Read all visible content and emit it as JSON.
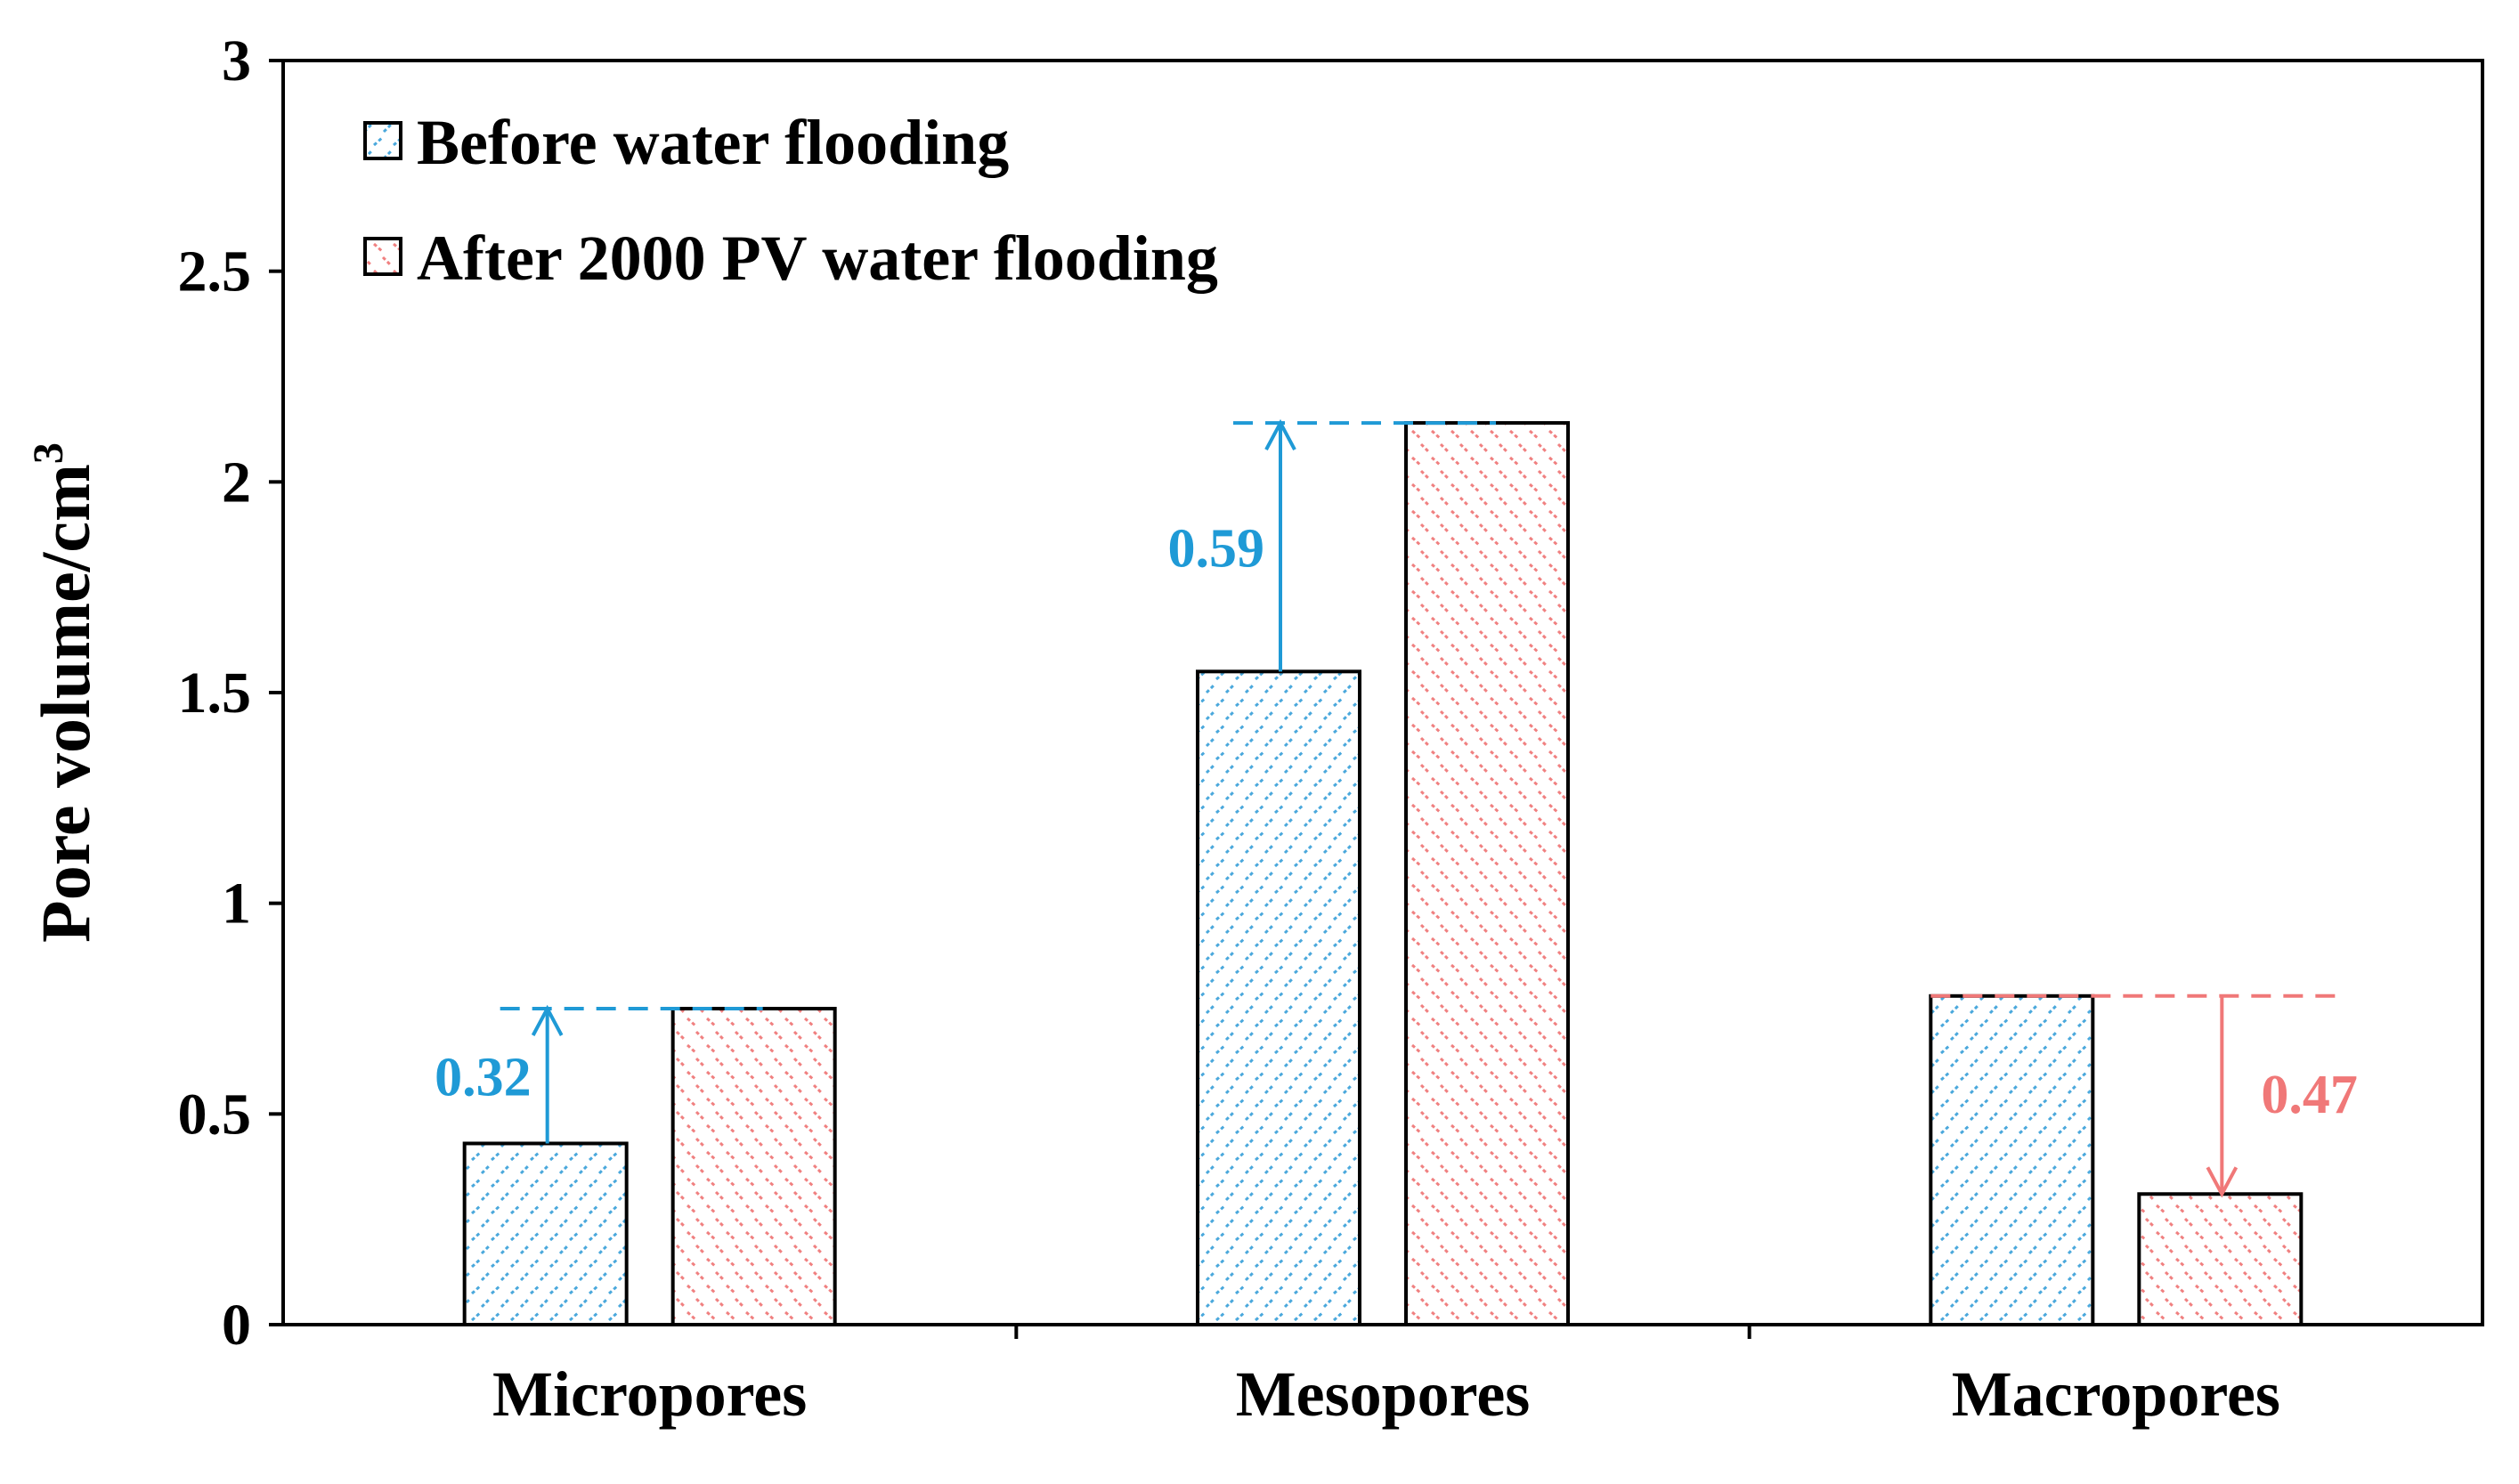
{
  "chart_data": {
    "type": "bar",
    "title": "",
    "xlabel": "",
    "ylabel": "Pore volume/cm",
    "ylabel_sup": "3",
    "ylim": [
      0,
      3
    ],
    "yticks": [
      {
        "value": 0,
        "label": "0"
      },
      {
        "value": 0.5,
        "label": "0.5"
      },
      {
        "value": 1,
        "label": "1"
      },
      {
        "value": 1.5,
        "label": "1.5"
      },
      {
        "value": 2,
        "label": "2"
      },
      {
        "value": 2.5,
        "label": "2.5"
      },
      {
        "value": 3,
        "label": "3"
      }
    ],
    "categories": [
      "Micropores",
      "Mesopores",
      "Macropores"
    ],
    "series": [
      {
        "name": "Before water flooding",
        "values": [
          0.43,
          1.55,
          0.78
        ],
        "color": "#4aa8dc"
      },
      {
        "name": "After 2000 PV water flooding",
        "values": [
          0.75,
          2.14,
          0.31
        ],
        "color": "#f08080"
      }
    ],
    "annotations": [
      {
        "category": "Micropores",
        "label": "0.32",
        "from": 0.43,
        "to": 0.75,
        "direction": "up",
        "color": "#1f9ad6"
      },
      {
        "category": "Mesopores",
        "label": "0.59",
        "from": 1.55,
        "to": 2.14,
        "direction": "up",
        "color": "#1f9ad6"
      },
      {
        "category": "Macropores",
        "label": "0.47",
        "from": 0.78,
        "to": 0.31,
        "direction": "down",
        "color": "#f07878"
      }
    ],
    "legend_position": "top-left",
    "grid": false
  }
}
